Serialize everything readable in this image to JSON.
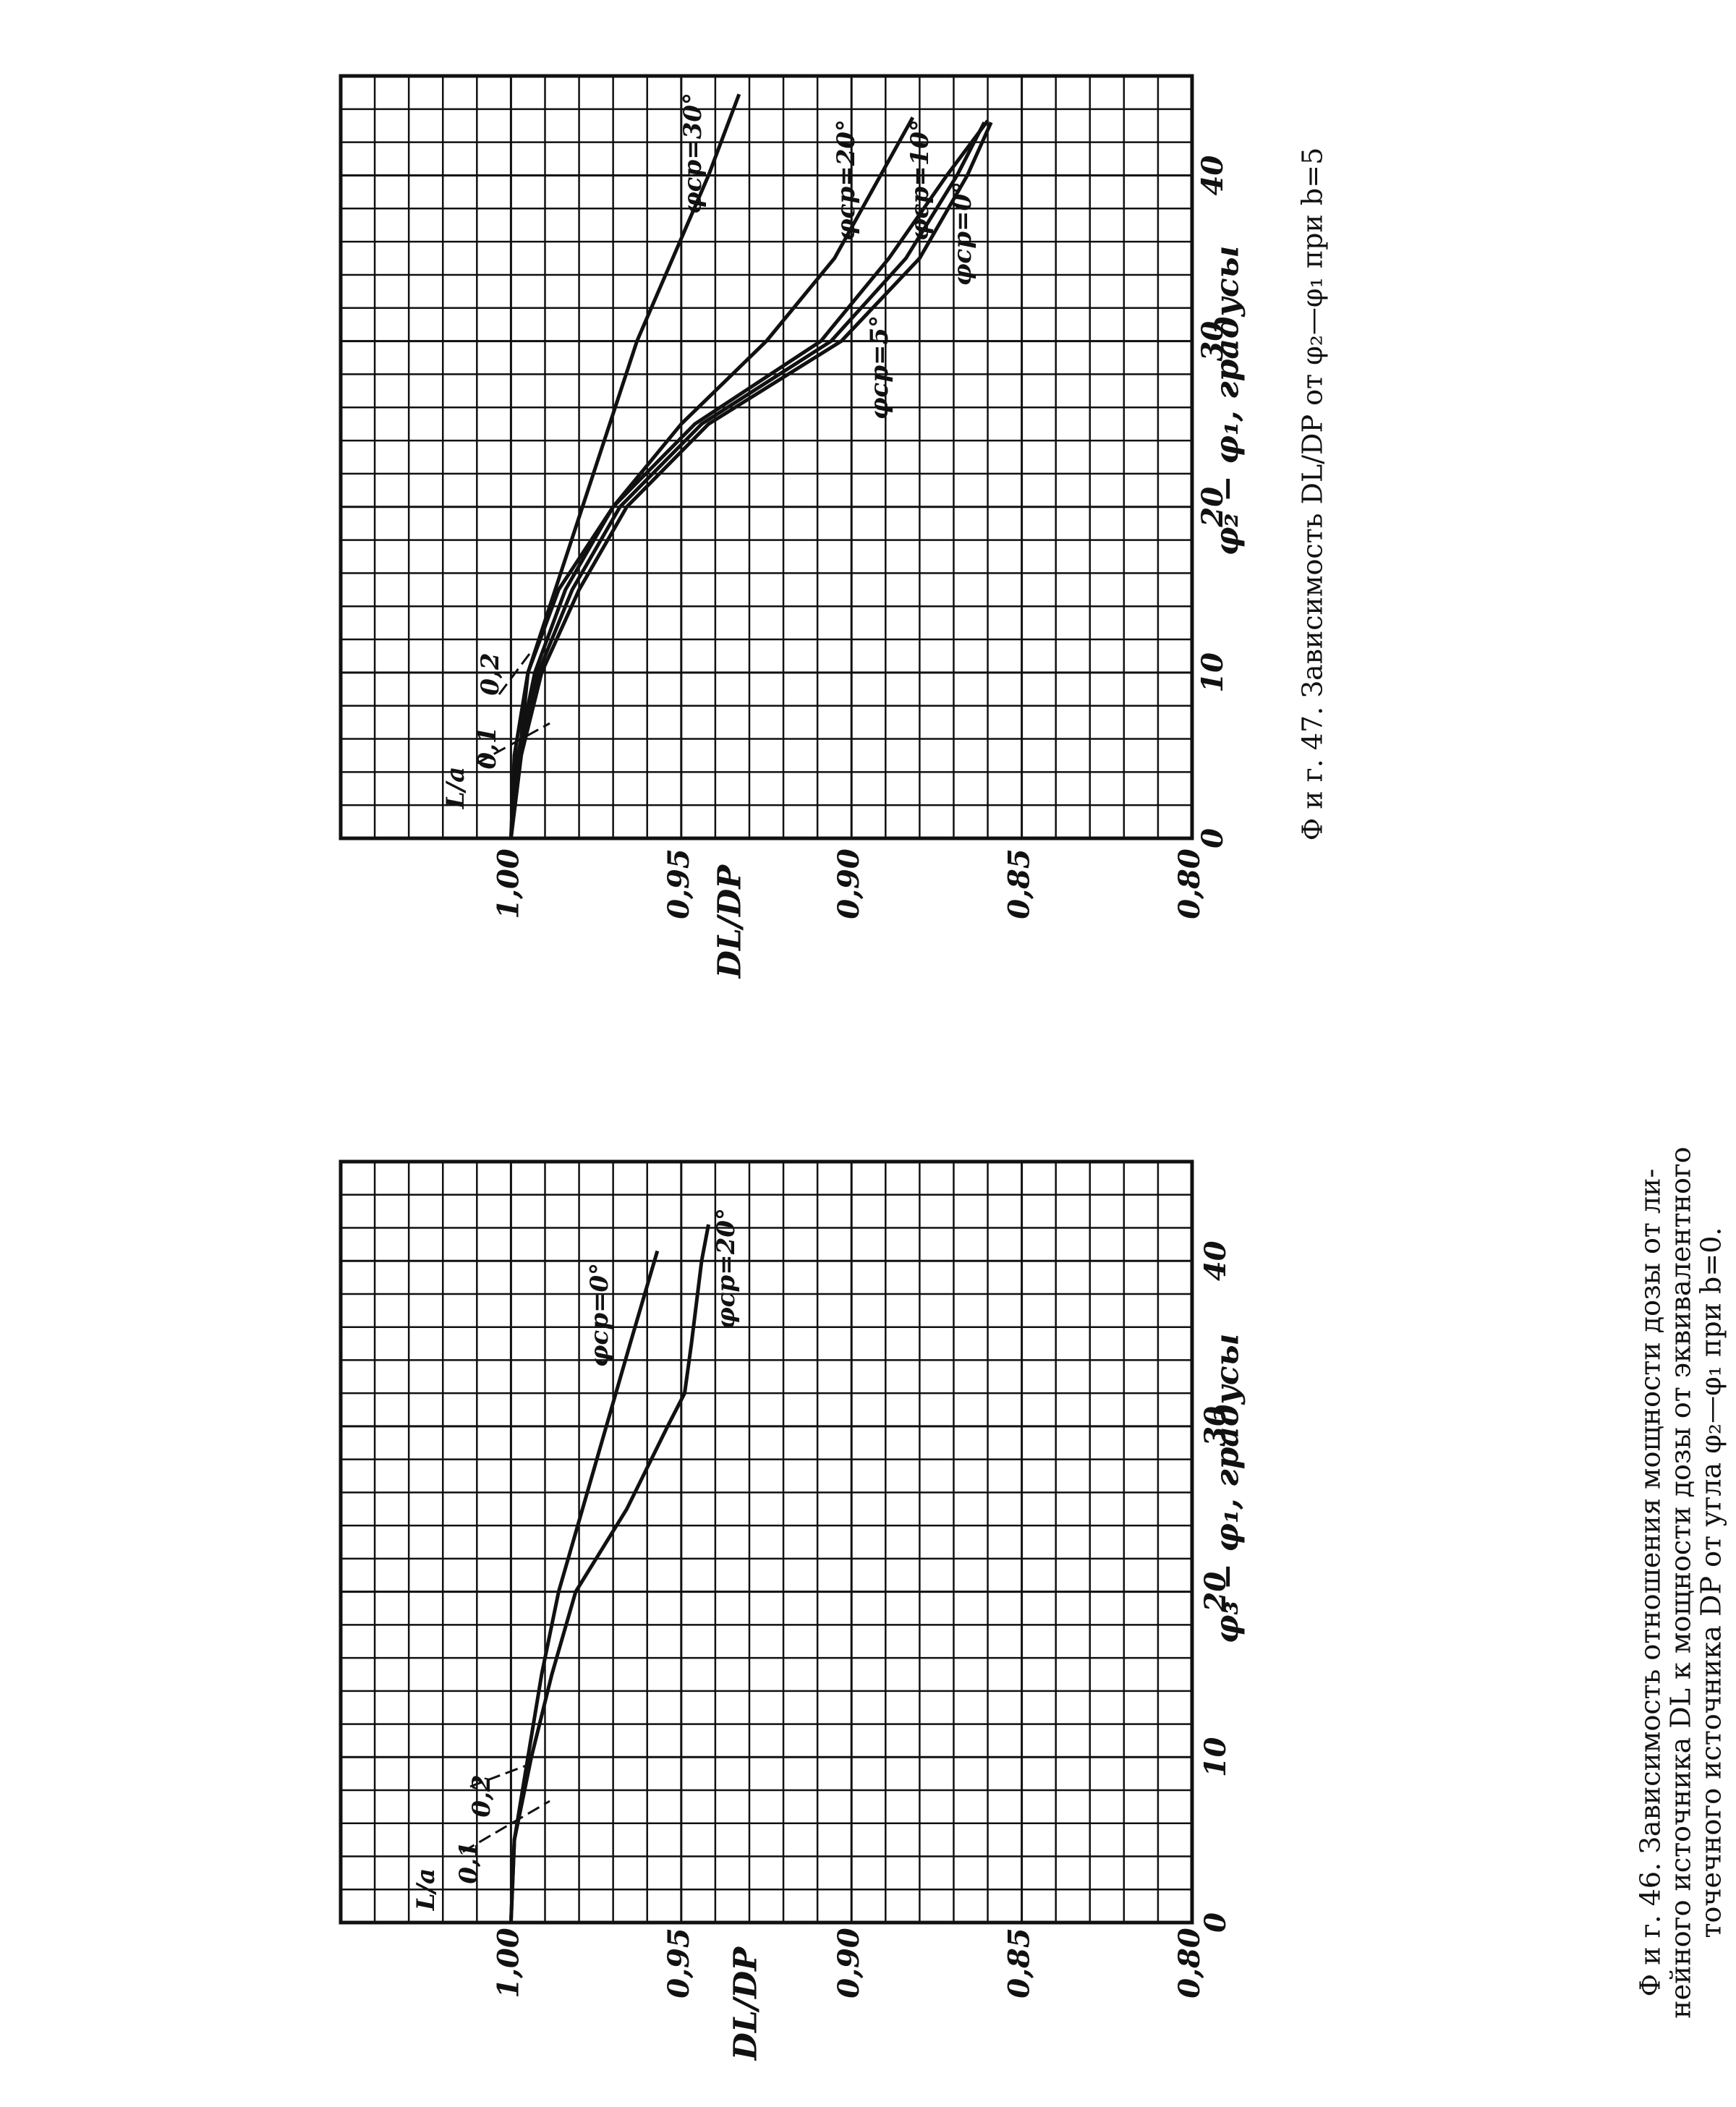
{
  "chart_data": [
    {
      "type": "line",
      "caption": [
        "Ф и г. 47. Зависимость DL/DP от φ₂—φ₁ при b=5"
      ],
      "x_label": "φ₂ − φ₁, градусы",
      "y_label": "DL/DP",
      "annotations": [
        "L/a",
        "0,1",
        "0,2"
      ],
      "xlim": [
        0,
        46
      ],
      "xticks": [
        0,
        10,
        20,
        30,
        40
      ],
      "ylim": [
        0.8,
        1.05
      ],
      "yticks": [
        {
          "value": 1.0,
          "label": "1,00"
        },
        {
          "value": 0.95,
          "label": "0,95"
        },
        {
          "value": 0.9,
          "label": "0,90"
        },
        {
          "value": 0.85,
          "label": "0,85"
        },
        {
          "value": 0.8,
          "label": "0,80"
        }
      ],
      "grid": true,
      "series": [
        {
          "name": "φср=30°",
          "color": "#111",
          "x": [
            0,
            10,
            20,
            30,
            40,
            44.9
          ],
          "values": [
            1.0,
            0.995,
            0.979,
            0.963,
            0.942,
            0.933
          ]
        },
        {
          "name": "φср=20°",
          "color": "#111",
          "x": [
            0,
            5,
            10,
            15,
            20,
            25,
            30,
            35,
            43.5
          ],
          "values": [
            1.0,
            0.999,
            0.995,
            0.986,
            0.97,
            0.95,
            0.925,
            0.905,
            0.882
          ]
        },
        {
          "name": "φср=10°",
          "color": "#111",
          "x": [
            0,
            5,
            10,
            15,
            20,
            25,
            30,
            35,
            40,
            43.3
          ],
          "values": [
            1.0,
            0.998,
            0.993,
            0.984,
            0.97,
            0.946,
            0.909,
            0.889,
            0.872,
            0.86
          ]
        },
        {
          "name": "φср=5°",
          "color": "#111",
          "x": [
            0,
            5,
            10,
            15,
            20,
            25,
            30,
            35,
            40,
            43.2
          ],
          "values": [
            1.0,
            0.997,
            0.992,
            0.982,
            0.968,
            0.944,
            0.906,
            0.884,
            0.869,
            0.861
          ]
        },
        {
          "name": "φср=0°",
          "color": "#111",
          "x": [
            0,
            5,
            10,
            15,
            20,
            25,
            30,
            35,
            40,
            43.2
          ],
          "values": [
            1.0,
            0.997,
            0.991,
            0.98,
            0.966,
            0.942,
            0.903,
            0.88,
            0.866,
            0.859
          ]
        }
      ]
    },
    {
      "type": "line",
      "caption": [
        "Ф и г. 46. Зависимость отношения мощности дозы от ли-",
        "нейного источника DL к мощности дозы от эквивалентного",
        "точечного источника DP от угла φ₂—φ₁ при b=0."
      ],
      "x_label": "φ₃ − φ₁, градусы",
      "y_label": "DL/DP",
      "annotations": [
        "L/a",
        "0,1",
        "0,2"
      ],
      "xlim": [
        0,
        46
      ],
      "xticks": [
        0,
        10,
        20,
        30,
        40
      ],
      "ylim": [
        0.8,
        1.05
      ],
      "yticks": [
        {
          "value": 1.0,
          "label": "1,00"
        },
        {
          "value": 0.95,
          "label": "0,95"
        },
        {
          "value": 0.9,
          "label": "0,90"
        },
        {
          "value": 0.85,
          "label": "0,85"
        },
        {
          "value": 0.8,
          "label": "0,80"
        }
      ],
      "grid": true,
      "series": [
        {
          "name": "φср=0°",
          "color": "#111",
          "x": [
            0,
            5,
            10,
            15,
            20,
            25,
            30,
            35,
            40.6
          ],
          "values": [
            1.0,
            0.999,
            0.995,
            0.991,
            0.986,
            0.979,
            0.972,
            0.965,
            0.957
          ]
        },
        {
          "name": "φср=20°",
          "color": "#111",
          "x": [
            0,
            5,
            10,
            15,
            20,
            25,
            30,
            32,
            35,
            40,
            42.2
          ],
          "values": [
            1.0,
            0.999,
            0.994,
            0.988,
            0.981,
            0.966,
            0.954,
            0.949,
            0.947,
            0.944,
            0.942
          ]
        }
      ]
    }
  ]
}
